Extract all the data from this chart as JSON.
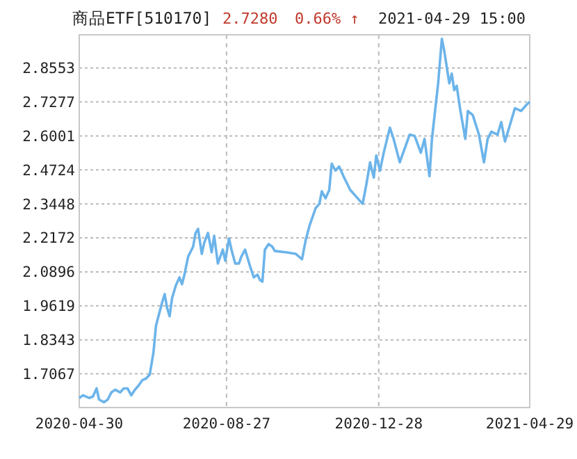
{
  "chart_data": {
    "type": "line",
    "title": "商品ETF[510170]",
    "annotations": [
      "2.7280",
      "0.66% ↑",
      "2021-04-29 15:00"
    ],
    "xlim": [
      "2020-04-30",
      "2021-04-29"
    ],
    "xticks": [
      {
        "value": "2020-04-30",
        "label": "2020-04-30"
      },
      {
        "value": "2020-08-27",
        "label": "2020-08-27"
      },
      {
        "value": "2020-12-28",
        "label": "2020-12-28"
      },
      {
        "value": "2021-04-29",
        "label": "2021-04-29"
      }
    ],
    "ylim": [
      1.58,
      2.98
    ],
    "yticks": [
      1.7067,
      1.8343,
      1.9619,
      2.0896,
      2.2172,
      2.3448,
      2.4724,
      2.6001,
      2.7277,
      2.8553
    ],
    "grid": true,
    "marker": "none",
    "line_style": "solid",
    "x": [
      "2020-04-30",
      "2020-05-03",
      "2020-05-08",
      "2020-05-11",
      "2020-05-14",
      "2020-05-16",
      "2020-05-20",
      "2020-05-23",
      "2020-05-26",
      "2020-05-29",
      "2020-06-02",
      "2020-06-05",
      "2020-06-08",
      "2020-06-11",
      "2020-06-14",
      "2020-06-17",
      "2020-06-20",
      "2020-06-23",
      "2020-06-26",
      "2020-06-29",
      "2020-07-01",
      "2020-07-03",
      "2020-07-06",
      "2020-07-08",
      "2020-07-10",
      "2020-07-12",
      "2020-07-14",
      "2020-07-17",
      "2020-07-20",
      "2020-07-22",
      "2020-07-24",
      "2020-07-27",
      "2020-07-31",
      "2020-08-02",
      "2020-08-04",
      "2020-08-07",
      "2020-08-09",
      "2020-08-12",
      "2020-08-15",
      "2020-08-17",
      "2020-08-20",
      "2020-08-24",
      "2020-08-26",
      "2020-08-29",
      "2020-08-31",
      "2020-09-03",
      "2020-09-06",
      "2020-09-08",
      "2020-09-11",
      "2020-09-13",
      "2020-09-15",
      "2020-09-18",
      "2020-09-21",
      "2020-09-23",
      "2020-09-25",
      "2020-09-27",
      "2020-09-30",
      "2020-10-03",
      "2020-10-05",
      "2020-10-14",
      "2020-10-22",
      "2020-10-27",
      "2020-10-30",
      "2020-11-02",
      "2020-11-07",
      "2020-11-10",
      "2020-11-12",
      "2020-11-15",
      "2020-11-18",
      "2020-11-20",
      "2020-11-23",
      "2020-11-26",
      "2020-11-30",
      "2020-12-05",
      "2020-12-15",
      "2020-12-18",
      "2020-12-21",
      "2020-12-24",
      "2020-12-26",
      "2020-12-29",
      "2021-01-01",
      "2021-01-06",
      "2021-01-09",
      "2021-01-14",
      "2021-01-18",
      "2021-01-22",
      "2021-01-26",
      "2021-01-31",
      "2021-02-03",
      "2021-02-07",
      "2021-02-09",
      "2021-02-14",
      "2021-02-17",
      "2021-02-19",
      "2021-02-23",
      "2021-02-25",
      "2021-02-27",
      "2021-03-01",
      "2021-03-04",
      "2021-03-08",
      "2021-03-10",
      "2021-03-14",
      "2021-03-19",
      "2021-03-23",
      "2021-03-26",
      "2021-03-29",
      "2021-04-03",
      "2021-04-06",
      "2021-04-09",
      "2021-04-14",
      "2021-04-17",
      "2021-04-22",
      "2021-04-27",
      "2021-04-29"
    ],
    "series": [
      {
        "color": "#6cb4ea",
        "values": [
          1.616,
          1.626,
          1.616,
          1.621,
          1.652,
          1.61,
          1.6,
          1.61,
          1.637,
          1.647,
          1.637,
          1.652,
          1.652,
          1.626,
          1.647,
          1.663,
          1.683,
          1.689,
          1.704,
          1.788,
          1.887,
          1.923,
          1.975,
          2.006,
          1.954,
          1.923,
          1.991,
          2.038,
          2.069,
          2.043,
          2.079,
          2.147,
          2.184,
          2.236,
          2.251,
          2.157,
          2.199,
          2.236,
          2.163,
          2.225,
          2.121,
          2.173,
          2.131,
          2.215,
          2.173,
          2.121,
          2.121,
          2.147,
          2.173,
          2.142,
          2.111,
          2.069,
          2.079,
          2.059,
          2.053,
          2.173,
          2.194,
          2.184,
          2.168,
          2.163,
          2.157,
          2.137,
          2.209,
          2.262,
          2.329,
          2.345,
          2.392,
          2.366,
          2.397,
          2.496,
          2.47,
          2.485,
          2.444,
          2.397,
          2.345,
          2.418,
          2.501,
          2.444,
          2.527,
          2.47,
          2.537,
          2.631,
          2.589,
          2.501,
          2.553,
          2.605,
          2.6,
          2.537,
          2.589,
          2.449,
          2.589,
          2.798,
          2.965,
          2.918,
          2.798,
          2.834,
          2.772,
          2.788,
          2.694,
          2.589,
          2.694,
          2.678,
          2.605,
          2.501,
          2.589,
          2.616,
          2.605,
          2.652,
          2.579,
          2.657,
          2.704,
          2.694,
          2.72,
          2.728
        ]
      }
    ]
  }
}
